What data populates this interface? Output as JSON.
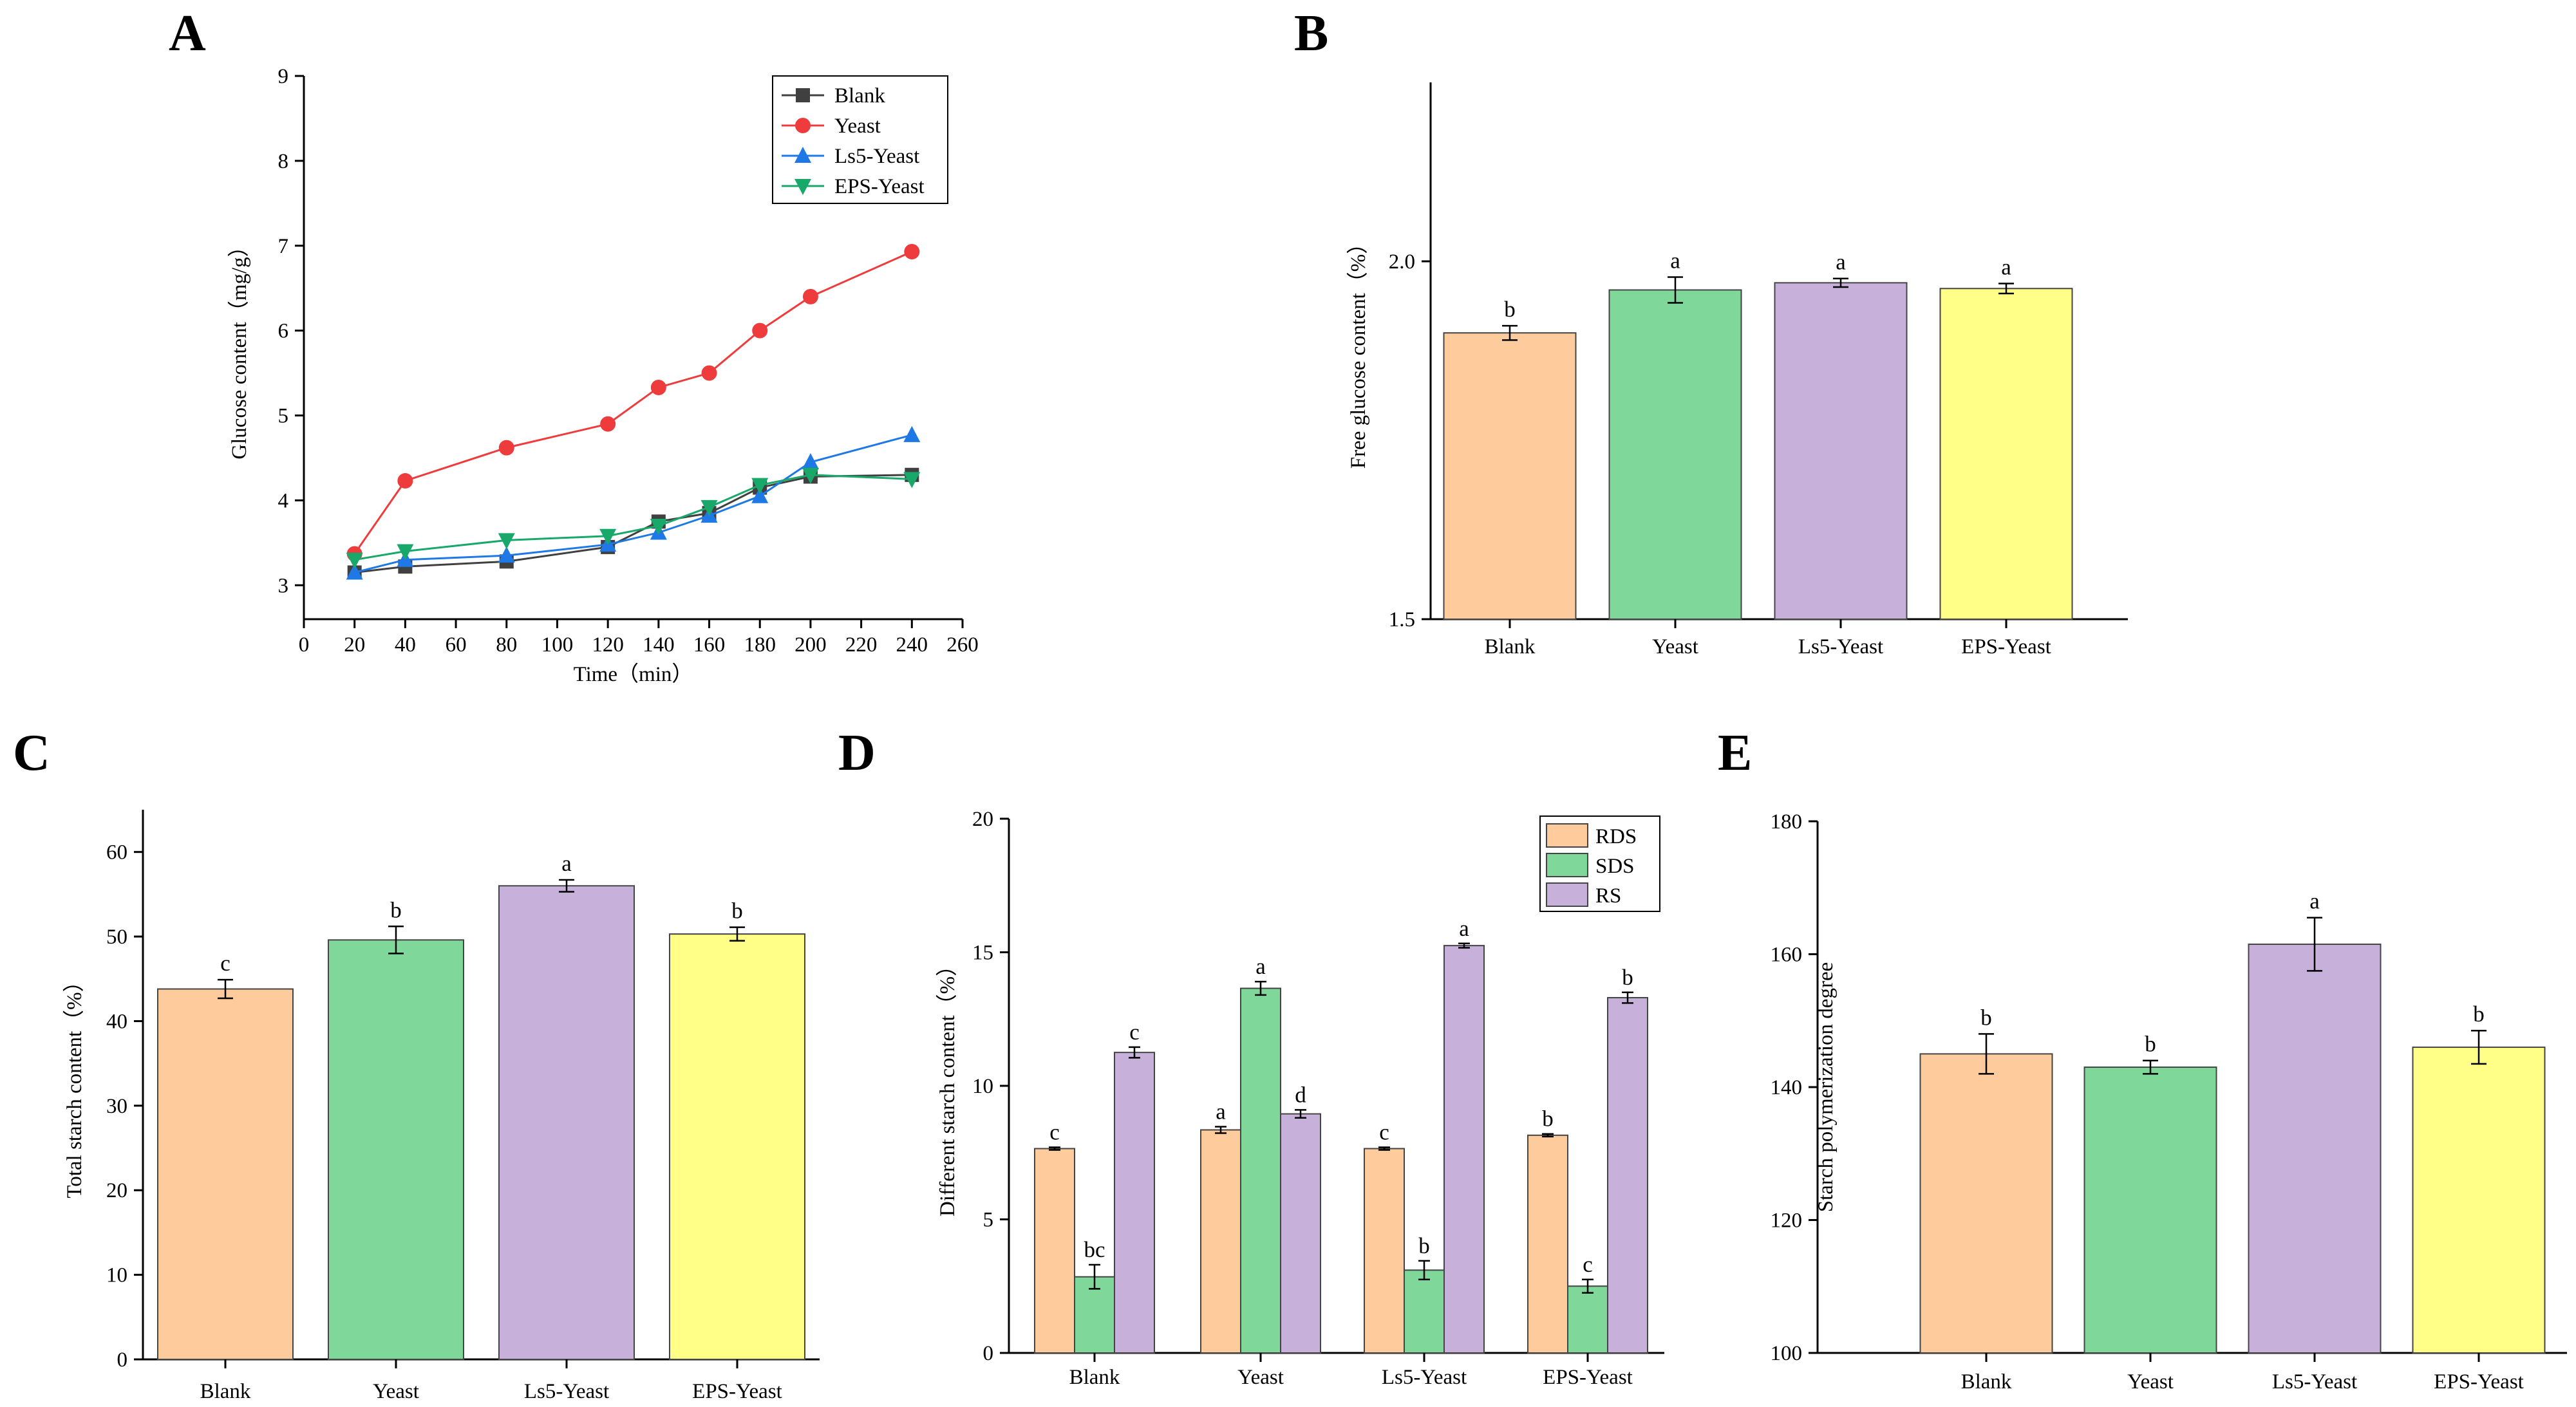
{
  "figure": {
    "panel_letters": [
      "A",
      "B",
      "C",
      "D",
      "E"
    ]
  },
  "colors": {
    "blank_bar": "#FDCB9C",
    "yeast_bar": "#7FD89A",
    "ls5_bar": "#C7B1DB",
    "eps_bar": "#FFFF88",
    "rds": "#FDCB9C",
    "sds": "#7FD89A",
    "rs": "#C7B1DB",
    "line_blank": "#404040",
    "line_yeast": "#EE3B3B",
    "line_ls5": "#1E78E6",
    "line_eps": "#18A86A"
  },
  "chart_data": [
    {
      "panel": "A",
      "type": "line",
      "xlabel": "Time（min）",
      "ylabel": "Glucose content（mg/g）",
      "xlim": [
        0,
        260
      ],
      "ylim": [
        2.6,
        9
      ],
      "xticks": [
        0,
        20,
        40,
        60,
        80,
        100,
        120,
        140,
        160,
        180,
        200,
        220,
        240,
        260
      ],
      "yticks": [
        3,
        4,
        5,
        6,
        7,
        8,
        9
      ],
      "x": [
        20,
        40,
        80,
        120,
        140,
        160,
        180,
        200,
        240
      ],
      "series": [
        {
          "name": "Blank",
          "marker": "square",
          "values": [
            3.15,
            3.22,
            3.28,
            3.45,
            3.75,
            3.85,
            4.15,
            4.28,
            4.3
          ],
          "errors": [
            0.03,
            0.03,
            0.03,
            0.03,
            0.04,
            0.04,
            0.04,
            0.04,
            0.03
          ]
        },
        {
          "name": "Yeast",
          "marker": "circle",
          "values": [
            3.37,
            4.23,
            4.62,
            4.9,
            5.33,
            5.5,
            6.0,
            6.4,
            6.93
          ],
          "errors": [
            0.03,
            0.04,
            0.04,
            0.04,
            0.05,
            0.05,
            0.07,
            0.08,
            0.05
          ]
        },
        {
          "name": "Ls5-Yeast",
          "marker": "triangle-up",
          "values": [
            3.15,
            3.3,
            3.35,
            3.48,
            3.62,
            3.82,
            4.05,
            4.45,
            4.77
          ],
          "errors": [
            0.03,
            0.03,
            0.03,
            0.03,
            0.03,
            0.04,
            0.04,
            0.05,
            0.05
          ]
        },
        {
          "name": "EPS-Yeast",
          "marker": "triangle-down",
          "values": [
            3.3,
            3.4,
            3.53,
            3.58,
            3.7,
            3.92,
            4.18,
            4.3,
            4.25
          ],
          "errors": [
            0.03,
            0.03,
            0.03,
            0.03,
            0.03,
            0.04,
            0.04,
            0.04,
            0.04
          ]
        }
      ],
      "legend": "top-right"
    },
    {
      "panel": "B",
      "type": "bar",
      "categories": [
        "Blank",
        "Yeast",
        "Ls5-Yeast",
        "EPS-Yeast"
      ],
      "values": [
        1.9,
        1.96,
        1.97,
        1.962
      ],
      "errors": [
        0.01,
        0.018,
        0.006,
        0.007
      ],
      "letters": [
        "b",
        "a",
        "a",
        "a"
      ],
      "ylabel": "Free glucose content（%）",
      "ylim": [
        1.5,
        2.25
      ],
      "yticks": [
        1.5,
        2.0
      ],
      "ytick_labels": [
        "1.5",
        "2.0"
      ]
    },
    {
      "panel": "C",
      "type": "bar",
      "categories": [
        "Blank",
        "Yeast",
        "Ls5-Yeast",
        "EPS-Yeast"
      ],
      "values": [
        43.8,
        49.6,
        56.0,
        50.3
      ],
      "errors": [
        1.1,
        1.6,
        0.7,
        0.8
      ],
      "letters": [
        "c",
        "b",
        "a",
        "b"
      ],
      "ylabel": "Total starch content（%）",
      "ylim": [
        0,
        65
      ],
      "yticks": [
        0,
        10,
        20,
        30,
        40,
        50,
        60
      ]
    },
    {
      "panel": "D",
      "type": "bar",
      "categories": [
        "Blank",
        "Yeast",
        "Ls5-Yeast",
        "EPS-Yeast"
      ],
      "series": [
        {
          "name": "RDS",
          "values": [
            7.65,
            8.35,
            7.65,
            8.15
          ],
          "errors": [
            0.05,
            0.12,
            0.05,
            0.05
          ],
          "letters": [
            "c",
            "a",
            "c",
            "b"
          ]
        },
        {
          "name": "SDS",
          "values": [
            2.85,
            13.65,
            3.1,
            2.5
          ],
          "errors": [
            0.45,
            0.25,
            0.35,
            0.25
          ],
          "letters": [
            "bc",
            "a",
            "b",
            "c"
          ]
        },
        {
          "name": "RS",
          "values": [
            11.25,
            8.95,
            15.25,
            13.3
          ],
          "errors": [
            0.2,
            0.15,
            0.08,
            0.2
          ],
          "letters": [
            "c",
            "d",
            "a",
            "b"
          ]
        }
      ],
      "ylabel": "Different starch content（%）",
      "ylim": [
        0,
        20
      ],
      "yticks": [
        0,
        5,
        10,
        15,
        20
      ],
      "legend": "top-right"
    },
    {
      "panel": "E",
      "type": "bar",
      "categories": [
        "Blank",
        "Yeast",
        "Ls5-Yeast",
        "EPS-Yeast"
      ],
      "values": [
        145.0,
        143.0,
        161.5,
        146.0
      ],
      "errors": [
        3.0,
        1.0,
        4.0,
        2.5
      ],
      "letters": [
        "b",
        "b",
        "a",
        "b"
      ],
      "ylabel": "Starch polymerization degree",
      "ylim": [
        100,
        180
      ],
      "yticks": [
        100,
        120,
        140,
        160,
        180
      ]
    }
  ]
}
